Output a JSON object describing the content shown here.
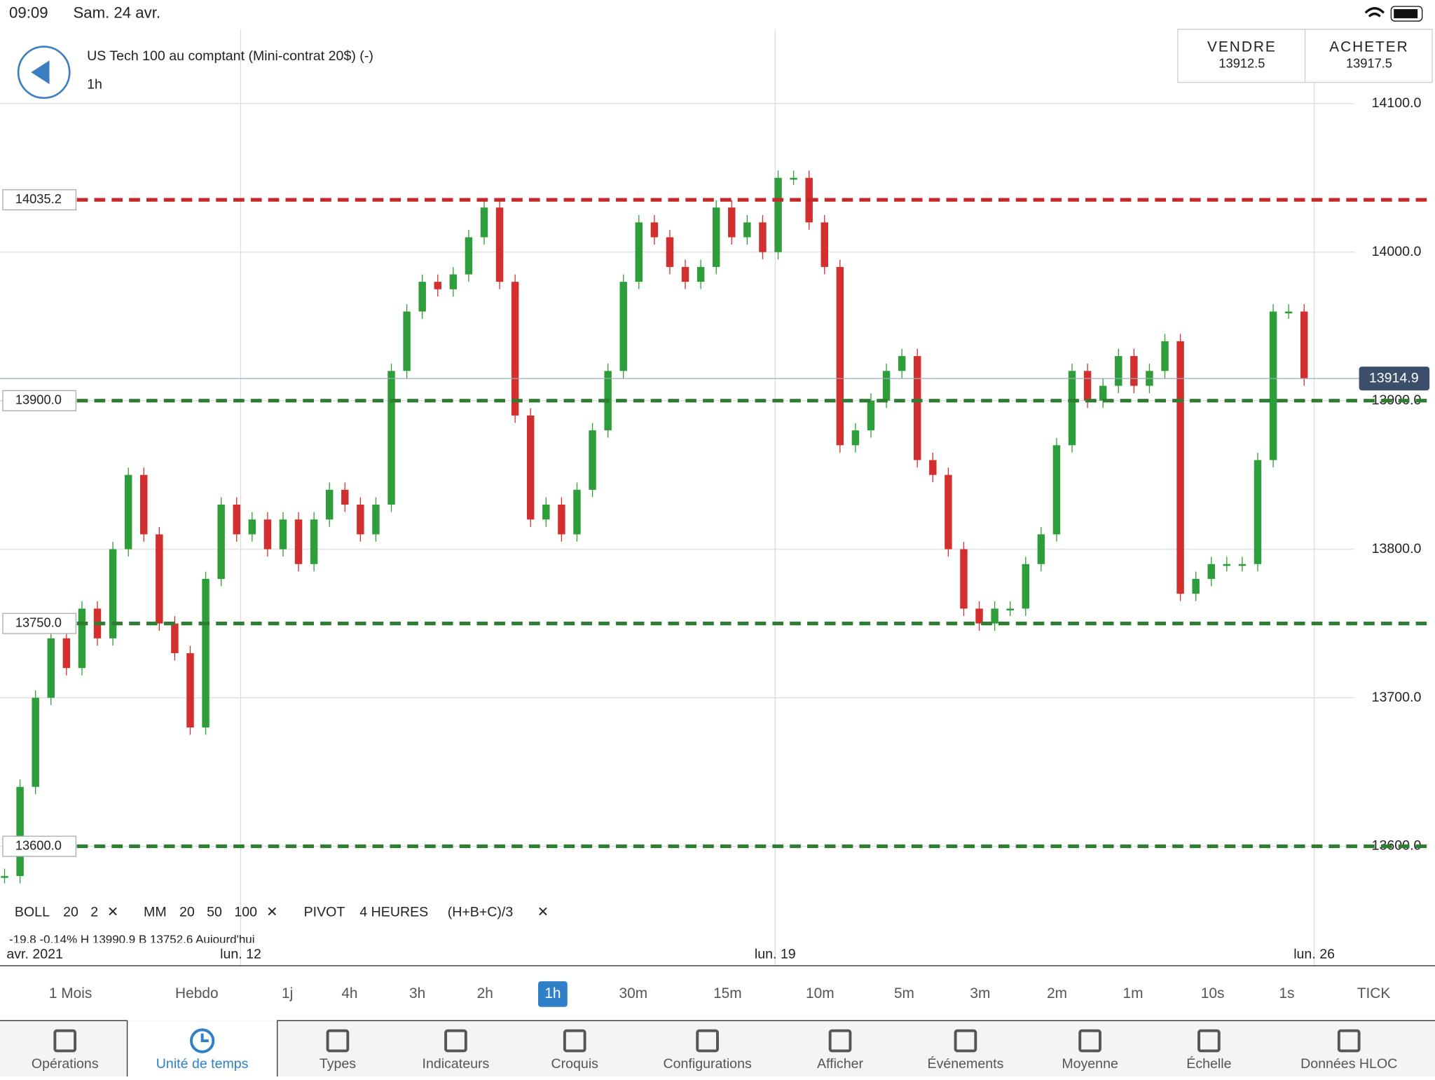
{
  "status": {
    "time": "09:09",
    "date": "Sam. 24 avr."
  },
  "header": {
    "title": "US Tech 100 au comptant (Mini-contrat 20$) (-)",
    "interval": "1h",
    "sell": {
      "label": "VENDRE",
      "price": 13912.5
    },
    "buy": {
      "label": "ACHETER",
      "price": 13917.5
    }
  },
  "chart_data": {
    "type": "candlestick",
    "ylim": [
      13535,
      14150
    ],
    "yticks": [
      {
        "value": 14100,
        "label": "14100.0"
      },
      {
        "value": 14000,
        "label": "14000.0"
      },
      {
        "value": 13900,
        "label": "13900.0"
      },
      {
        "value": 13800,
        "label": "13800.0"
      },
      {
        "value": 13700,
        "label": "13700.0"
      },
      {
        "value": 13600,
        "label": "13600.0"
      }
    ],
    "x_labels": [
      "avr. 2021",
      "lun. 12",
      "lun. 19",
      "lun. 26"
    ],
    "values": [
      13580,
      13640,
      13700,
      13740,
      13720,
      13760,
      13740,
      13800,
      13850,
      13810,
      13750,
      13730,
      13680,
      13780,
      13830,
      13810,
      13820,
      13800,
      13820,
      13790,
      13820,
      13840,
      13830,
      13810,
      13830,
      13920,
      13960,
      13980,
      13975,
      13985,
      14010,
      14030,
      13980,
      13890,
      13820,
      13830,
      13810,
      13840,
      13880,
      13920,
      13980,
      14020,
      14010,
      13990,
      13980,
      13990,
      14030,
      14010,
      14020,
      14000,
      14050,
      14050,
      14020,
      13990,
      13870,
      13880,
      13900,
      13920,
      13930,
      13860,
      13850,
      13800,
      13760,
      13750,
      13760,
      13760,
      13790,
      13810,
      13870,
      13920,
      13900,
      13910,
      13930,
      13910,
      13920,
      13940,
      13770,
      13780,
      13790,
      13790,
      13790,
      13860,
      13960,
      13960,
      13915
    ],
    "levels": [
      {
        "value": 14035.2,
        "color": "#c62828"
      },
      {
        "value": {
          "value": 13900,
          "label": "13900.0"
        },
        "color": "#2e7d32"
      },
      {
        "value": {
          "value": 13750,
          "label": "13750.0"
        },
        "color": "#2e7d32"
      },
      {
        "value": {
          "value": 13600,
          "label": "13600.0"
        },
        "color": "#2e7d32"
      }
    ],
    "current": 13914.9,
    "up_color": "#2e9e3a",
    "down_color": "#d32f2f"
  },
  "indicators": {
    "boll": {
      "name": "BOLL",
      "period": 20,
      "dev": 2
    },
    "mm": {
      "name": "MM",
      "p1": 20,
      "p2": 50,
      "p3": 100
    },
    "pivot": {
      "name": "PIVOT",
      "period": "4 HEURES",
      "formula": "(H+B+C)/3"
    },
    "info": "-19.8  -0.14%   H 13990.9   B 13752.6   Aujourd'hui"
  },
  "timeframes": {
    "items": [
      "1 Mois",
      "Hebdo",
      "1j",
      "4h",
      "3h",
      "2h",
      "1h",
      "30m",
      "15m",
      "10m",
      "5m",
      "3m",
      "2m",
      "1m",
      "10s",
      "1s",
      "TICK"
    ],
    "selected": 6
  },
  "toolbar": {
    "items": [
      "Opérations",
      "Unité de temps",
      "Types",
      "Indicateurs",
      "Croquis",
      "Configurations",
      "Afficher",
      "Événements",
      "Moyenne",
      "Échelle",
      "Données HLOC"
    ],
    "active": 1
  }
}
